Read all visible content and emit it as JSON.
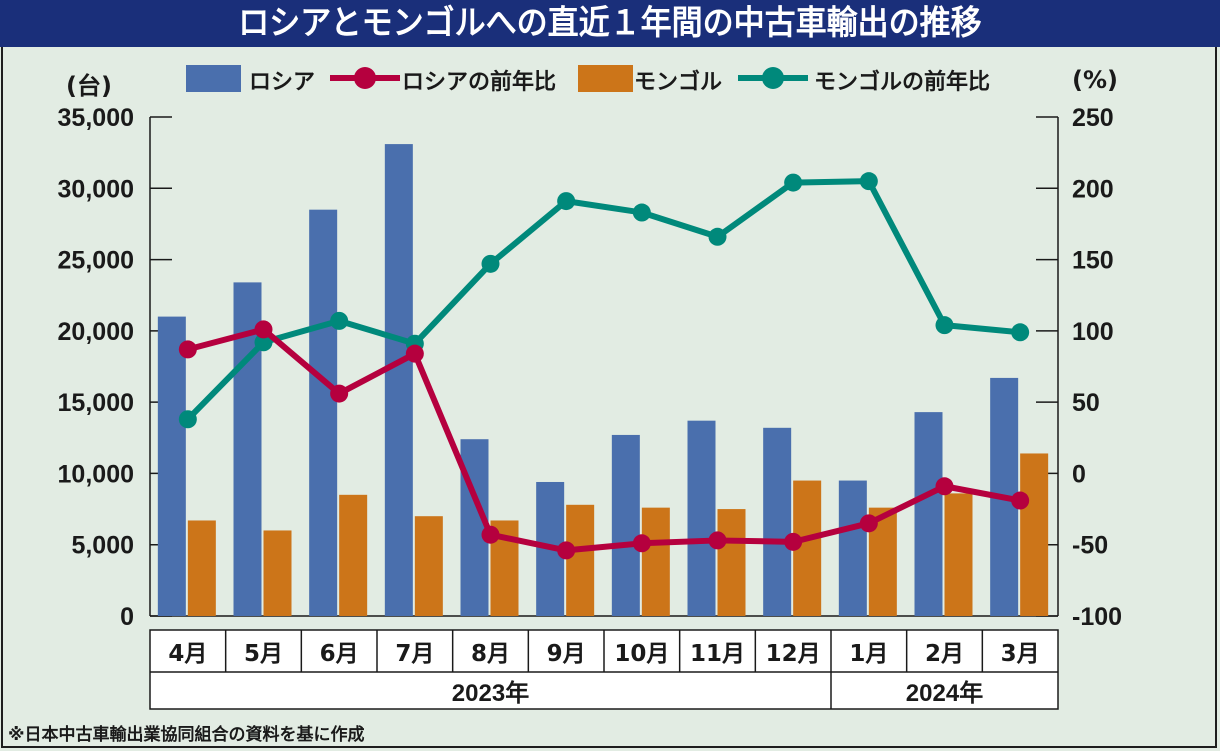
{
  "title": "ロシアとモンゴルへの直近１年間の中古車輸出の推移",
  "footer_note": "※日本中古車輸出業協同組合の資料を基に作成",
  "colors": {
    "title_bg": "#1a2f7a",
    "background": "#e2ece3",
    "russia": "#4a6fad",
    "russia_yoy": "#b5003e",
    "mongolia": "#cc7519",
    "mongolia_yoy": "#00897b"
  },
  "chart_data": {
    "type": "bar+line",
    "title": "ロシアとモンゴルへの直近１年間の中古車輸出の推移",
    "categories": [
      "4月",
      "5月",
      "6月",
      "7月",
      "8月",
      "9月",
      "10月",
      "11月",
      "12月",
      "1月",
      "2月",
      "3月"
    ],
    "year_groups": [
      {
        "label": "2023年",
        "span": 9
      },
      {
        "label": "2024年",
        "span": 3
      }
    ],
    "left_axis": {
      "label": "(台)",
      "ylim": [
        0,
        35000
      ],
      "ticks": [
        "0",
        "5,000",
        "10,000",
        "15,000",
        "20,000",
        "25,000",
        "30,000",
        "35,000"
      ],
      "tick_values": [
        0,
        5000,
        10000,
        15000,
        20000,
        25000,
        30000,
        35000
      ]
    },
    "right_axis": {
      "label": "(%)",
      "ylim": [
        -100,
        250
      ],
      "ticks": [
        "-100",
        "-50",
        "0",
        "50",
        "100",
        "150",
        "200",
        "250"
      ],
      "tick_values": [
        -100,
        -50,
        0,
        50,
        100,
        150,
        200,
        250
      ]
    },
    "legend_position": "top",
    "grid": false,
    "series": [
      {
        "name": "ロシア",
        "type": "bar",
        "axis": "left",
        "values": [
          21000,
          23400,
          28500,
          33100,
          12400,
          9400,
          12700,
          13700,
          13200,
          9500,
          14300,
          16700
        ]
      },
      {
        "name": "ロシアの前年比",
        "type": "line",
        "axis": "right",
        "values": [
          87,
          101,
          56,
          84,
          -43,
          -54,
          -49,
          -47,
          -48,
          -35,
          -9,
          -19
        ]
      },
      {
        "name": "モンゴル",
        "type": "bar",
        "axis": "left",
        "values": [
          6700,
          6000,
          8500,
          7000,
          6700,
          7800,
          7600,
          7500,
          9500,
          7600,
          8600,
          11400
        ]
      },
      {
        "name": "モンゴルの前年比",
        "type": "line",
        "axis": "right",
        "values": [
          38,
          92,
          107,
          91,
          147,
          191,
          183,
          166,
          204,
          205,
          104,
          99
        ]
      }
    ]
  }
}
